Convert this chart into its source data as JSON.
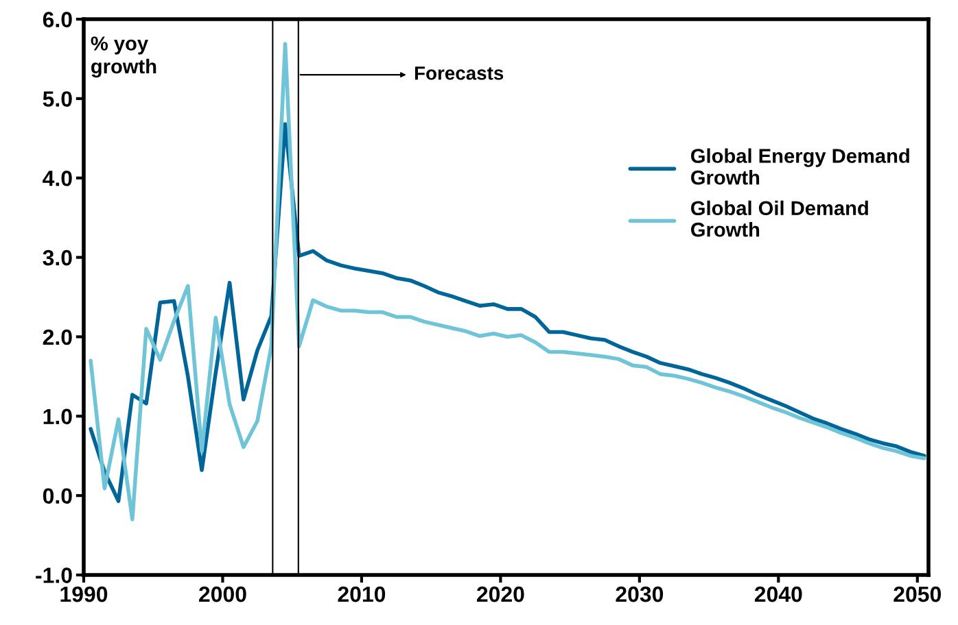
{
  "chart_data": {
    "type": "line",
    "ylabel": "% yoy\ngrowth",
    "x": [
      1990.5,
      1991.5,
      1992.5,
      1993.5,
      1994.5,
      1995.5,
      1996.5,
      1997.5,
      1998.5,
      1999.5,
      2000.5,
      2001.5,
      2002.5,
      2003.5,
      2004.5,
      2005.5,
      2006.5,
      2007.5,
      2008.5,
      2009.5,
      2010.5,
      2011.5,
      2012.5,
      2013.5,
      2014.5,
      2015.5,
      2016.5,
      2017.5,
      2018.5,
      2019.5,
      2020.5,
      2021.5,
      2022.5,
      2023.5,
      2024.5,
      2025.5,
      2026.5,
      2027.5,
      2028.5,
      2029.5,
      2030.5,
      2031.5,
      2032.5,
      2033.5,
      2034.5,
      2035.5,
      2036.5,
      2037.5,
      2038.5,
      2039.5,
      2040.5,
      2041.5,
      2042.5,
      2043.5,
      2044.5,
      2045.5,
      2046.5,
      2047.5,
      2048.5,
      2049.5,
      2050.5
    ],
    "series": [
      {
        "name": "Global Energy Demand\nGrowth",
        "color": "#006699",
        "values": [
          0.84,
          0.3,
          -0.07,
          1.27,
          1.16,
          2.43,
          2.45,
          1.5,
          0.32,
          1.55,
          2.68,
          1.21,
          1.83,
          2.26,
          4.68,
          3.02,
          3.08,
          2.96,
          2.9,
          2.86,
          2.83,
          2.8,
          2.74,
          2.71,
          2.64,
          2.56,
          2.51,
          2.45,
          2.39,
          2.41,
          2.35,
          2.35,
          2.25,
          2.06,
          2.06,
          2.02,
          1.98,
          1.96,
          1.88,
          1.81,
          1.75,
          1.67,
          1.63,
          1.59,
          1.53,
          1.48,
          1.42,
          1.35,
          1.27,
          1.2,
          1.13,
          1.05,
          0.97,
          0.91,
          0.84,
          0.78,
          0.71,
          0.66,
          0.62,
          0.55,
          0.5
        ]
      },
      {
        "name": "Global Oil Demand\nGrowth",
        "color": "#70c4d8",
        "values": [
          1.7,
          0.09,
          0.96,
          -0.3,
          2.1,
          1.71,
          2.2,
          2.64,
          0.56,
          2.24,
          1.15,
          0.61,
          0.94,
          1.88,
          5.69,
          1.88,
          2.46,
          2.38,
          2.33,
          2.33,
          2.31,
          2.31,
          2.25,
          2.25,
          2.19,
          2.15,
          2.11,
          2.07,
          2.01,
          2.04,
          2.0,
          2.02,
          1.93,
          1.81,
          1.81,
          1.79,
          1.77,
          1.75,
          1.72,
          1.64,
          1.62,
          1.53,
          1.51,
          1.47,
          1.42,
          1.36,
          1.31,
          1.25,
          1.18,
          1.11,
          1.05,
          0.98,
          0.92,
          0.86,
          0.79,
          0.73,
          0.66,
          0.6,
          0.56,
          0.5,
          0.47
        ]
      }
    ],
    "xlim": [
      1990,
      2050.8
    ],
    "xticks": [
      1990,
      2000,
      2010,
      2020,
      2030,
      2040,
      2050
    ],
    "ylim": [
      -1,
      6
    ],
    "yticks": [
      {
        "value": -1,
        "label": "-1.0"
      },
      {
        "value": 0,
        "label": "0.0"
      },
      {
        "value": 1,
        "label": "1.0"
      },
      {
        "value": 2,
        "label": "2.0"
      },
      {
        "value": 3,
        "label": "3.0"
      },
      {
        "value": 4,
        "label": "4.0"
      },
      {
        "value": 5,
        "label": "5.0"
      },
      {
        "value": 6,
        "label": "6.0"
      }
    ],
    "ref_lines": [
      {
        "axis": "x",
        "value": 2003.6,
        "color": "#000000"
      },
      {
        "axis": "x",
        "value": 2005.45,
        "color": "#000000"
      }
    ],
    "annotations": [
      {
        "text": "Forecasts",
        "x": 2005.45,
        "y": 5.3
      }
    ],
    "legend": "top right",
    "grid": false,
    "marker": "none",
    "line_style": "solid"
  }
}
